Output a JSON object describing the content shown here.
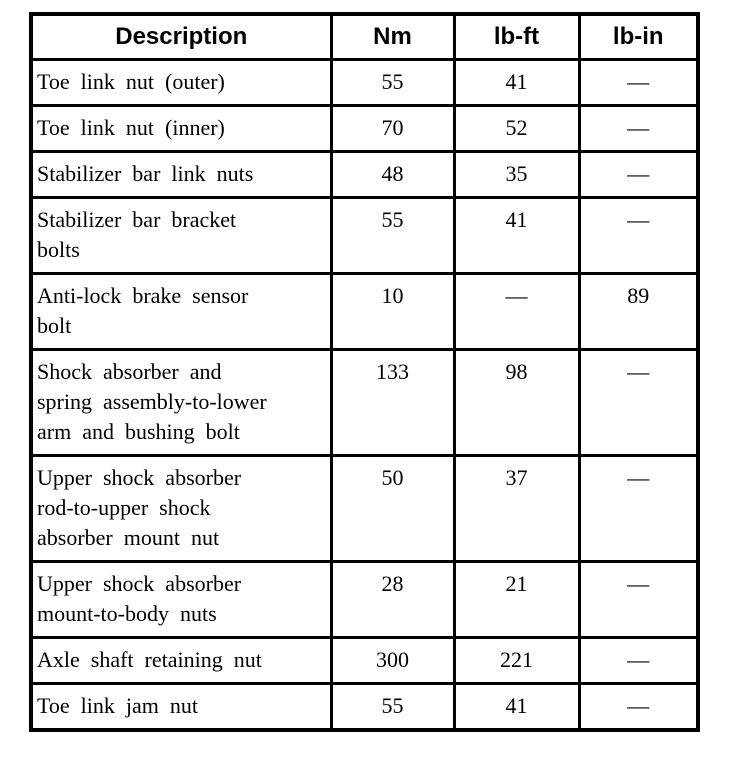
{
  "colors": {
    "background": "#ffffff",
    "border": "#000000",
    "text": "#000000"
  },
  "table": {
    "columns": [
      {
        "label": "Description"
      },
      {
        "label": "Nm"
      },
      {
        "label": "lb-ft"
      },
      {
        "label": "lb-in"
      }
    ],
    "rows": [
      {
        "description": "Toe link nut (outer)",
        "nm": "55",
        "lb_ft": "41",
        "lb_in": "—"
      },
      {
        "description": "Toe link nut (inner)",
        "nm": "70",
        "lb_ft": "52",
        "lb_in": "—"
      },
      {
        "description": "Stabilizer bar link nuts",
        "nm": "48",
        "lb_ft": "35",
        "lb_in": "—"
      },
      {
        "description": "Stabilizer bar bracket bolts",
        "nm": "55",
        "lb_ft": "41",
        "lb_in": "—"
      },
      {
        "description": "Anti-lock brake sensor bolt",
        "nm": "10",
        "lb_ft": "—",
        "lb_in": "89"
      },
      {
        "description": "Shock absorber and spring assembly-to-lower arm and bushing bolt",
        "nm": "133",
        "lb_ft": "98",
        "lb_in": "—"
      },
      {
        "description": "Upper shock absorber rod-to-upper shock absorber mount nut",
        "nm": "50",
        "lb_ft": "37",
        "lb_in": "—"
      },
      {
        "description": "Upper shock absorber mount-to-body nuts",
        "nm": "28",
        "lb_ft": "21",
        "lb_in": "—"
      },
      {
        "description": "Axle shaft retaining nut",
        "nm": "300",
        "lb_ft": "221",
        "lb_in": "—"
      },
      {
        "description": "Toe link jam nut",
        "nm": "55",
        "lb_ft": "41",
        "lb_in": "—"
      }
    ]
  }
}
